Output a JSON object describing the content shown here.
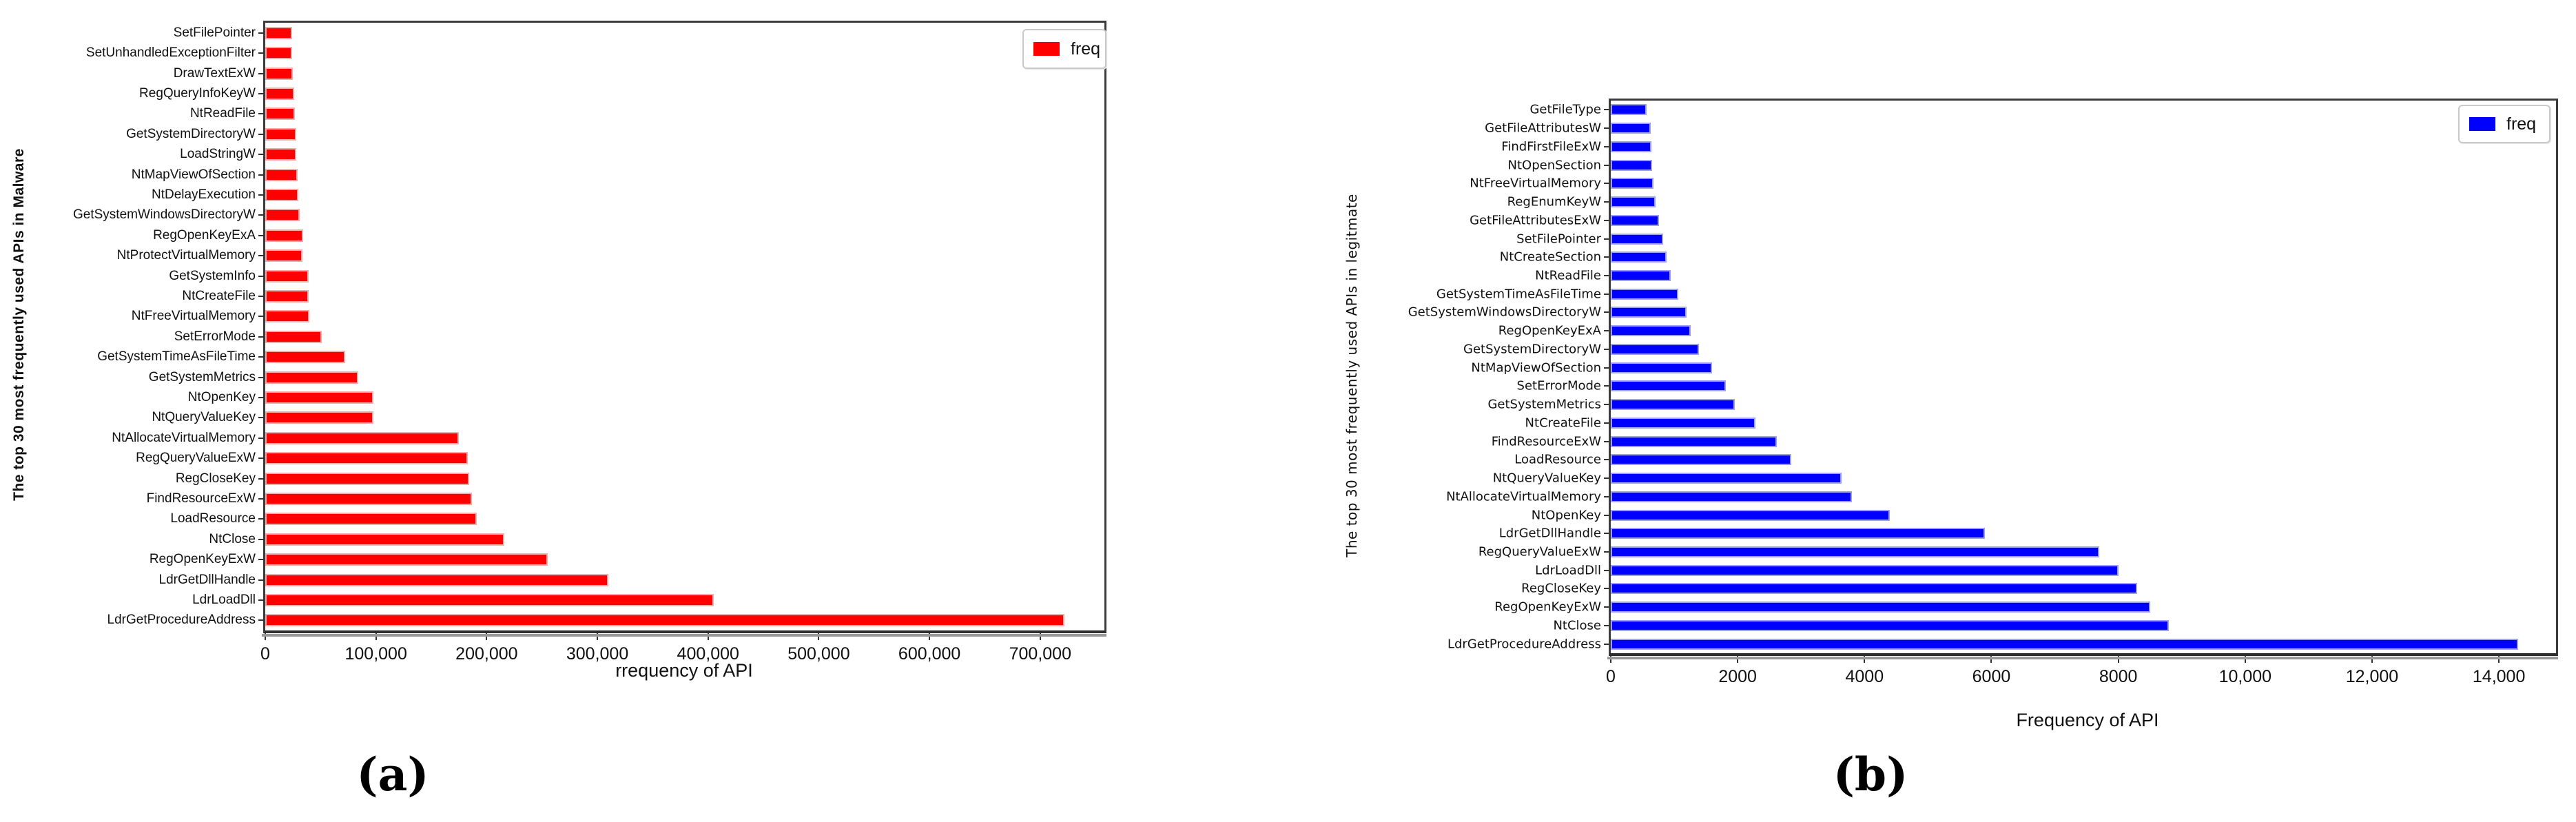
{
  "figure": {
    "background": "#ffffff",
    "caption_a": "(a)",
    "caption_b": "(b)"
  },
  "chart_data": [
    {
      "id": "a",
      "type": "bar",
      "orientation": "horizontal",
      "ylabel": "The top 30 most frequently used APIs in Malware",
      "xlabel": "rrequency of API",
      "legend_label": "freq",
      "legend_position": "top-right",
      "bar_color": "#ff0000",
      "bar_edge_color": "#ffaaaa",
      "grid": false,
      "xlim": [
        0,
        758000
      ],
      "xticks": [
        0,
        100000,
        200000,
        300000,
        400000,
        500000,
        600000,
        700000
      ],
      "xtick_labels": [
        "0",
        "100,000",
        "200,000",
        "300,000",
        "400,000",
        "500,000",
        "600,000",
        "700,000"
      ],
      "categories_top_to_bottom": [
        "SetFilePointer",
        "SetUnhandledExceptionFilter",
        "DrawTextExW",
        "RegQueryInfoKeyW",
        "NtReadFile",
        "GetSystemDirectoryW",
        "LoadStringW",
        "NtMapViewOfSection",
        "NtDelayExecution",
        "GetSystemWindowsDirectoryW",
        "RegOpenKeyExA",
        "NtProtectVirtualMemory",
        "GetSystemInfo",
        "NtCreateFile",
        "NtFreeVirtualMemory",
        "SetErrorMode",
        "GetSystemTimeAsFileTime",
        "GetSystemMetrics",
        "NtOpenKey",
        "NtQueryValueKey",
        "NtAllocateVirtualMemory",
        "RegQueryValueExW",
        "RegCloseKey",
        "FindResourceExW",
        "LoadResource",
        "NtClose",
        "RegOpenKeyExW",
        "LdrGetDllHandle",
        "LdrLoadDll",
        "LdrGetProcedureAddress"
      ],
      "values": [
        24000,
        24000,
        25000,
        26000,
        26500,
        28000,
        28000,
        29500,
        30000,
        31000,
        34000,
        33500,
        39000,
        39000,
        40000,
        51000,
        72000,
        84000,
        98000,
        98000,
        175000,
        183000,
        184000,
        187000,
        191000,
        216000,
        255000,
        310000,
        405000,
        722000
      ]
    },
    {
      "id": "b",
      "type": "bar",
      "orientation": "horizontal",
      "ylabel": "The top 30 most frequently used APIs in legitmate",
      "xlabel": "Frequency of API",
      "legend_label": "freq",
      "legend_position": "top-right",
      "bar_color": "#0000ff",
      "bar_edge_color": "#9e9eff",
      "grid": false,
      "xlim": [
        0,
        14900
      ],
      "xticks": [
        0,
        2000,
        4000,
        6000,
        8000,
        10000,
        12000,
        14000
      ],
      "xtick_labels": [
        "0",
        "2000",
        "4000",
        "6000",
        "8000",
        "10,000",
        "12,000",
        "14,000"
      ],
      "categories_top_to_bottom": [
        "GetFileType",
        "GetFileAttributesW",
        "FindFirstFileExW",
        "NtOpenSection",
        "NtFreeVirtualMemory",
        "RegEnumKeyW",
        "GetFileAttributesExW",
        "SetFilePointer",
        "NtCreateSection",
        "NtReadFile",
        "GetSystemTimeAsFileTime",
        "GetSystemWindowsDirectoryW",
        "RegOpenKeyExA",
        "GetSystemDirectoryW",
        "NtMapViewOfSection",
        "SetErrorMode",
        "GetSystemMetrics",
        "NtCreateFile",
        "FindResourceExW",
        "LoadResource",
        "NtQueryValueKey",
        "NtAllocateVirtualMemory",
        "NtOpenKey",
        "LdrGetDllHandle",
        "RegQueryValueExW",
        "LdrLoadDll",
        "RegCloseKey",
        "RegOpenKeyExW",
        "NtClose",
        "LdrGetProcedureAddress"
      ],
      "values": [
        570,
        630,
        640,
        650,
        670,
        710,
        760,
        830,
        880,
        950,
        1060,
        1190,
        1260,
        1390,
        1600,
        1810,
        1950,
        2280,
        2620,
        2850,
        3640,
        3800,
        4400,
        5900,
        7700,
        8000,
        8300,
        8500,
        8800,
        14300
      ]
    }
  ]
}
